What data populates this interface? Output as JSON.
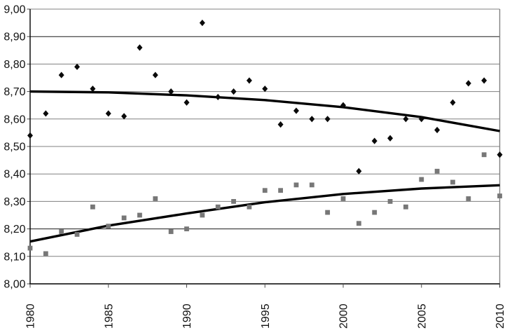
{
  "chart_data": {
    "type": "scatter",
    "title": "",
    "xlabel": "",
    "ylabel": "",
    "legend": "none",
    "grid": true,
    "xlim": [
      1980,
      2010
    ],
    "ylim": [
      8.0,
      9.0
    ],
    "x_years": [
      1980,
      1981,
      1982,
      1983,
      1984,
      1985,
      1986,
      1987,
      1988,
      1989,
      1990,
      1991,
      1992,
      1993,
      1994,
      1995,
      1996,
      1997,
      1998,
      1999,
      2000,
      2001,
      2002,
      2003,
      2004,
      2005,
      2006,
      2007,
      2008,
      2009,
      2010
    ],
    "series": [
      {
        "name": "diamond-series",
        "marker": "diamond",
        "color": "#0a0a0a",
        "values": [
          8.54,
          8.62,
          8.76,
          8.79,
          8.71,
          8.62,
          8.61,
          8.86,
          8.76,
          8.7,
          8.66,
          8.95,
          8.68,
          8.7,
          8.74,
          8.71,
          8.58,
          8.63,
          8.6,
          8.6,
          8.65,
          8.41,
          8.52,
          8.53,
          8.6,
          8.6,
          8.56,
          8.66,
          8.73,
          8.74,
          8.47
        ]
      },
      {
        "name": "square-series",
        "marker": "square",
        "color": "#777777",
        "values": [
          8.13,
          8.11,
          8.19,
          8.18,
          8.28,
          8.21,
          8.24,
          8.25,
          8.31,
          8.19,
          8.2,
          8.25,
          8.28,
          8.3,
          8.28,
          8.34,
          8.34,
          8.36,
          8.36,
          8.26,
          8.31,
          8.22,
          8.26,
          8.3,
          8.28,
          8.38,
          8.41,
          8.37,
          8.31,
          8.47,
          8.32
        ]
      }
    ],
    "trendlines": [
      {
        "for": "diamond-series",
        "color": "#000000",
        "width": 3.4,
        "points": [
          [
            1980,
            8.7
          ],
          [
            1985,
            8.697
          ],
          [
            1990,
            8.686
          ],
          [
            1995,
            8.669
          ],
          [
            2000,
            8.643
          ],
          [
            2005,
            8.607
          ],
          [
            2010,
            8.556
          ]
        ]
      },
      {
        "for": "square-series",
        "color": "#000000",
        "width": 3.4,
        "points": [
          [
            1980,
            8.154
          ],
          [
            1985,
            8.212
          ],
          [
            1990,
            8.256
          ],
          [
            1995,
            8.297
          ],
          [
            2000,
            8.327
          ],
          [
            2005,
            8.347
          ],
          [
            2010,
            8.359
          ]
        ]
      }
    ],
    "y_ticks": [
      {
        "value": 9.0,
        "label": "9,00",
        "dark_grid": false
      },
      {
        "value": 8.9,
        "label": "8,90",
        "dark_grid": true
      },
      {
        "value": 8.8,
        "label": "8,80",
        "dark_grid": false
      },
      {
        "value": 8.7,
        "label": "8,70",
        "dark_grid": false
      },
      {
        "value": 8.6,
        "label": "8,60",
        "dark_grid": false
      },
      {
        "value": 8.5,
        "label": "8,50",
        "dark_grid": false
      },
      {
        "value": 8.4,
        "label": "8,40",
        "dark_grid": false
      },
      {
        "value": 8.3,
        "label": "8,30",
        "dark_grid": false
      },
      {
        "value": 8.2,
        "label": "8,20",
        "dark_grid": true
      },
      {
        "value": 8.1,
        "label": "8,10",
        "dark_grid": false
      },
      {
        "value": 8.0,
        "label": "8,00",
        "dark_grid": false
      }
    ],
    "x_ticks": [
      {
        "value": 1980,
        "label": "1980"
      },
      {
        "value": 1985,
        "label": "1985"
      },
      {
        "value": 1990,
        "label": "1990"
      },
      {
        "value": 1995,
        "label": "1995"
      },
      {
        "value": 2000,
        "label": "2000"
      },
      {
        "value": 2005,
        "label": "2005"
      },
      {
        "value": 2010,
        "label": "2010"
      }
    ]
  },
  "style": {
    "background": "#ffffff",
    "grid_color": "#808080",
    "dark_grid_color": "#1a1a1a",
    "axis_color": "#000000",
    "tick_color": "#4a4a4a",
    "label_color": "#111111",
    "right_border_color": "#808080"
  }
}
